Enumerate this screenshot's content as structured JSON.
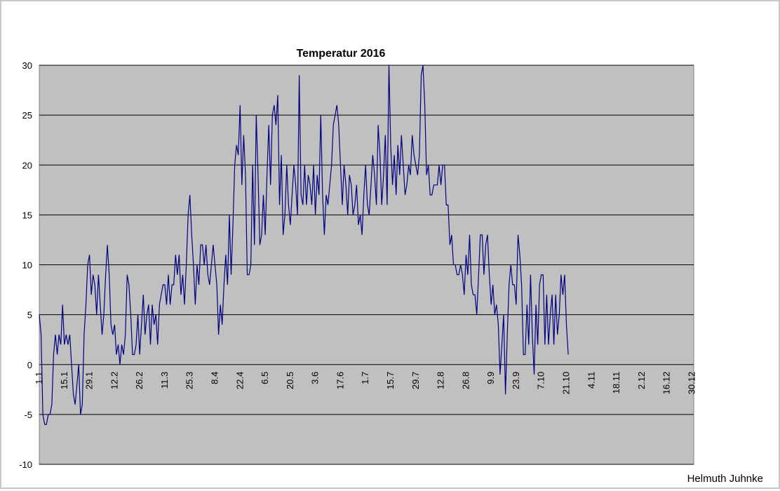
{
  "chart_data": {
    "type": "line",
    "title": "Temperatur 2016",
    "xlabel": "",
    "ylabel": "",
    "ylim": [
      -10,
      30
    ],
    "yticks": [
      -10,
      -5,
      0,
      5,
      10,
      15,
      20,
      25,
      30
    ],
    "xlim": [
      1,
      366
    ],
    "grid": "horizontal",
    "legend": "none",
    "colors": {
      "line": "#000080",
      "plot_bg": "#c0c0c0",
      "grid": "#000000"
    },
    "x_tick_labels": [
      {
        "day": 1,
        "label": "1.1"
      },
      {
        "day": 15,
        "label": "15.1"
      },
      {
        "day": 29,
        "label": "29.1"
      },
      {
        "day": 43,
        "label": "12.2"
      },
      {
        "day": 57,
        "label": "26.2"
      },
      {
        "day": 71,
        "label": "11.3"
      },
      {
        "day": 85,
        "label": "25.3"
      },
      {
        "day": 99,
        "label": "8.4"
      },
      {
        "day": 113,
        "label": "22.4"
      },
      {
        "day": 127,
        "label": "6.5"
      },
      {
        "day": 141,
        "label": "20.5"
      },
      {
        "day": 155,
        "label": "3.6"
      },
      {
        "day": 169,
        "label": "17.6"
      },
      {
        "day": 183,
        "label": "1.7"
      },
      {
        "day": 197,
        "label": "15.7"
      },
      {
        "day": 211,
        "label": "29.7"
      },
      {
        "day": 225,
        "label": "12.8"
      },
      {
        "day": 239,
        "label": "26.8"
      },
      {
        "day": 253,
        "label": "9.9"
      },
      {
        "day": 267,
        "label": "23.9"
      },
      {
        "day": 281,
        "label": "7.10"
      },
      {
        "day": 295,
        "label": "21.10"
      },
      {
        "day": 309,
        "label": "4.11"
      },
      {
        "day": 323,
        "label": "18.11"
      },
      {
        "day": 337,
        "label": "2.12"
      },
      {
        "day": 351,
        "label": "16.12"
      },
      {
        "day": 365,
        "label": "30.12"
      }
    ],
    "anchors": [
      [
        1,
        5
      ],
      [
        2,
        3
      ],
      [
        3,
        -5
      ],
      [
        4,
        -6
      ],
      [
        5,
        -6
      ],
      [
        6,
        -5
      ],
      [
        7,
        -5
      ],
      [
        8,
        -4
      ],
      [
        9,
        1
      ],
      [
        10,
        3
      ],
      [
        11,
        1
      ],
      [
        12,
        3
      ],
      [
        13,
        2
      ],
      [
        14,
        6
      ],
      [
        15,
        2
      ],
      [
        16,
        3
      ],
      [
        17,
        2
      ],
      [
        18,
        3
      ],
      [
        19,
        0
      ],
      [
        20,
        -3
      ],
      [
        21,
        -4
      ],
      [
        22,
        -2
      ],
      [
        23,
        0
      ],
      [
        24,
        -5
      ],
      [
        25,
        -4
      ],
      [
        26,
        3
      ],
      [
        27,
        6
      ],
      [
        28,
        10
      ],
      [
        29,
        11
      ],
      [
        30,
        7
      ],
      [
        31,
        9
      ],
      [
        32,
        8
      ],
      [
        33,
        5
      ],
      [
        34,
        9
      ],
      [
        35,
        6
      ],
      [
        36,
        3
      ],
      [
        37,
        5
      ],
      [
        38,
        9
      ],
      [
        39,
        12
      ],
      [
        40,
        9
      ],
      [
        41,
        4
      ],
      [
        42,
        3
      ],
      [
        43,
        4
      ],
      [
        44,
        1
      ],
      [
        45,
        2
      ],
      [
        46,
        0
      ],
      [
        47,
        2
      ],
      [
        48,
        1
      ],
      [
        49,
        3
      ],
      [
        50,
        9
      ],
      [
        51,
        8
      ],
      [
        52,
        5
      ],
      [
        53,
        1
      ],
      [
        54,
        1
      ],
      [
        55,
        2
      ],
      [
        56,
        5
      ],
      [
        57,
        1
      ],
      [
        58,
        4
      ],
      [
        59,
        7
      ],
      [
        60,
        3
      ],
      [
        61,
        5
      ],
      [
        62,
        6
      ],
      [
        63,
        2
      ],
      [
        64,
        6
      ],
      [
        65,
        4
      ],
      [
        66,
        5
      ],
      [
        67,
        2
      ],
      [
        68,
        6
      ],
      [
        69,
        7
      ],
      [
        70,
        8
      ],
      [
        71,
        8
      ],
      [
        72,
        6
      ],
      [
        73,
        9
      ],
      [
        74,
        6
      ],
      [
        75,
        8
      ],
      [
        76,
        8
      ],
      [
        77,
        11
      ],
      [
        78,
        9
      ],
      [
        79,
        11
      ],
      [
        80,
        7
      ],
      [
        81,
        9
      ],
      [
        82,
        6
      ],
      [
        83,
        10
      ],
      [
        84,
        15
      ],
      [
        85,
        17
      ],
      [
        86,
        13
      ],
      [
        87,
        10
      ],
      [
        88,
        6
      ],
      [
        89,
        10
      ],
      [
        90,
        8
      ],
      [
        91,
        12
      ],
      [
        92,
        12
      ],
      [
        93,
        10
      ],
      [
        94,
        12
      ],
      [
        95,
        9
      ],
      [
        96,
        8
      ],
      [
        97,
        10
      ],
      [
        98,
        12
      ],
      [
        99,
        10
      ],
      [
        100,
        8
      ],
      [
        101,
        3
      ],
      [
        102,
        6
      ],
      [
        103,
        4
      ],
      [
        104,
        8
      ],
      [
        105,
        11
      ],
      [
        106,
        8
      ],
      [
        107,
        15
      ],
      [
        108,
        9
      ],
      [
        109,
        14
      ],
      [
        110,
        20
      ],
      [
        111,
        22
      ],
      [
        112,
        21
      ],
      [
        113,
        26
      ],
      [
        114,
        18
      ],
      [
        115,
        23
      ],
      [
        116,
        19
      ],
      [
        117,
        9
      ],
      [
        118,
        9
      ],
      [
        119,
        10
      ],
      [
        120,
        20
      ],
      [
        121,
        12
      ],
      [
        122,
        25
      ],
      [
        123,
        19
      ],
      [
        124,
        12
      ],
      [
        125,
        13
      ],
      [
        126,
        17
      ],
      [
        127,
        13
      ],
      [
        128,
        19
      ],
      [
        129,
        24
      ],
      [
        130,
        18
      ],
      [
        131,
        25
      ],
      [
        132,
        26
      ],
      [
        133,
        24
      ],
      [
        134,
        27
      ],
      [
        135,
        16
      ],
      [
        136,
        21
      ],
      [
        137,
        13
      ],
      [
        138,
        15
      ],
      [
        139,
        20
      ],
      [
        140,
        16
      ],
      [
        141,
        14
      ],
      [
        142,
        17
      ],
      [
        143,
        20
      ],
      [
        144,
        18
      ],
      [
        145,
        15
      ],
      [
        146,
        29
      ],
      [
        147,
        17
      ],
      [
        148,
        16
      ],
      [
        149,
        20
      ],
      [
        150,
        16
      ],
      [
        151,
        19
      ],
      [
        152,
        18
      ],
      [
        153,
        16
      ],
      [
        154,
        20
      ],
      [
        155,
        15
      ],
      [
        156,
        19
      ],
      [
        157,
        17
      ],
      [
        158,
        25
      ],
      [
        159,
        17
      ],
      [
        160,
        13
      ],
      [
        161,
        17
      ],
      [
        162,
        16
      ],
      [
        163,
        18
      ],
      [
        164,
        20
      ],
      [
        165,
        24
      ],
      [
        166,
        25
      ],
      [
        167,
        26
      ],
      [
        168,
        24
      ],
      [
        169,
        20
      ],
      [
        170,
        16
      ],
      [
        171,
        20
      ],
      [
        172,
        18
      ],
      [
        173,
        15
      ],
      [
        174,
        19
      ],
      [
        175,
        18
      ],
      [
        176,
        15
      ],
      [
        177,
        16
      ],
      [
        178,
        18
      ],
      [
        179,
        14
      ],
      [
        180,
        15
      ],
      [
        181,
        13
      ],
      [
        182,
        17
      ],
      [
        183,
        20
      ],
      [
        184,
        16
      ],
      [
        185,
        15
      ],
      [
        186,
        18
      ],
      [
        187,
        21
      ],
      [
        188,
        19
      ],
      [
        189,
        16
      ],
      [
        190,
        24
      ],
      [
        191,
        21
      ],
      [
        192,
        16
      ],
      [
        193,
        19
      ],
      [
        194,
        23
      ],
      [
        195,
        16
      ],
      [
        196,
        30
      ],
      [
        197,
        22
      ],
      [
        198,
        18
      ],
      [
        199,
        21
      ],
      [
        200,
        17
      ],
      [
        201,
        22
      ],
      [
        202,
        19
      ],
      [
        203,
        23
      ],
      [
        204,
        20
      ],
      [
        205,
        17
      ],
      [
        206,
        18
      ],
      [
        207,
        20
      ],
      [
        208,
        19
      ],
      [
        209,
        23
      ],
      [
        210,
        21
      ],
      [
        211,
        20
      ],
      [
        212,
        19
      ],
      [
        213,
        21
      ],
      [
        214,
        29
      ],
      [
        215,
        30
      ],
      [
        216,
        26
      ],
      [
        217,
        19
      ],
      [
        218,
        20
      ],
      [
        219,
        17
      ],
      [
        220,
        17
      ],
      [
        221,
        18
      ],
      [
        222,
        18
      ],
      [
        223,
        18
      ],
      [
        224,
        20
      ],
      [
        225,
        18
      ],
      [
        226,
        20
      ],
      [
        227,
        20
      ],
      [
        228,
        16
      ],
      [
        229,
        16
      ],
      [
        230,
        12
      ],
      [
        231,
        13
      ],
      [
        232,
        10
      ],
      [
        233,
        10
      ],
      [
        234,
        9
      ],
      [
        235,
        9
      ],
      [
        236,
        10
      ],
      [
        237,
        9
      ],
      [
        238,
        7
      ],
      [
        239,
        11
      ],
      [
        240,
        9
      ],
      [
        241,
        13
      ],
      [
        242,
        8
      ],
      [
        243,
        7
      ],
      [
        244,
        7
      ],
      [
        245,
        5
      ],
      [
        246,
        9
      ],
      [
        247,
        13
      ],
      [
        248,
        13
      ],
      [
        249,
        9
      ],
      [
        250,
        12
      ],
      [
        251,
        13
      ],
      [
        252,
        9
      ],
      [
        253,
        6
      ],
      [
        254,
        8
      ],
      [
        255,
        5
      ],
      [
        256,
        6
      ],
      [
        257,
        4
      ],
      [
        258,
        -1
      ],
      [
        259,
        2
      ],
      [
        260,
        5
      ],
      [
        261,
        -3
      ],
      [
        262,
        3
      ],
      [
        263,
        8
      ],
      [
        264,
        10
      ],
      [
        265,
        8
      ],
      [
        266,
        8
      ],
      [
        267,
        6
      ],
      [
        268,
        13
      ],
      [
        269,
        11
      ],
      [
        270,
        8
      ],
      [
        271,
        1
      ],
      [
        272,
        1
      ],
      [
        273,
        6
      ],
      [
        274,
        2
      ],
      [
        275,
        9
      ],
      [
        276,
        3
      ],
      [
        277,
        -1
      ],
      [
        278,
        6
      ],
      [
        279,
        2
      ],
      [
        280,
        8
      ],
      [
        281,
        9
      ],
      [
        282,
        9
      ],
      [
        283,
        2
      ],
      [
        284,
        7
      ],
      [
        285,
        2
      ],
      [
        286,
        5
      ],
      [
        287,
        7
      ],
      [
        288,
        2
      ],
      [
        289,
        7
      ],
      [
        290,
        3
      ],
      [
        291,
        5
      ],
      [
        292,
        9
      ],
      [
        293,
        7
      ],
      [
        294,
        9
      ],
      [
        295,
        4
      ],
      [
        296,
        1
      ]
    ]
  },
  "credit": "Helmuth Juhnke"
}
